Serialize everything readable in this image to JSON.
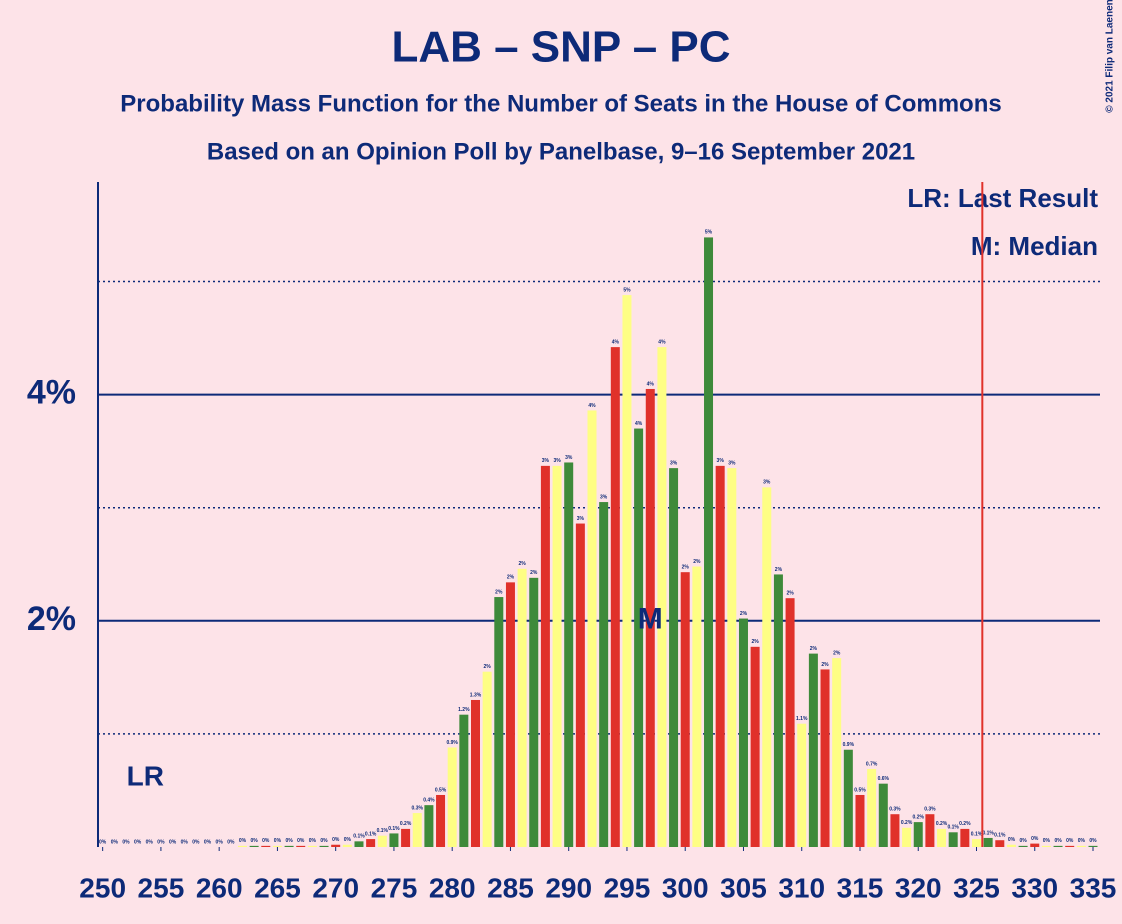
{
  "chart_data": {
    "type": "bar",
    "title": "LAB – SNP – PC",
    "subtitle": "Probability Mass Function for the Number of Seats in the House of Commons",
    "subtitle2": "Based on an Opinion Poll by Panelbase, 9–16 September 2021",
    "copyright": "© 2021 Filip van Laenen",
    "legend_lr": "LR: Last Result",
    "legend_median": "M: Median",
    "lr_label": "LR",
    "median_label": "M",
    "last_result": 254,
    "median": 297,
    "majority": 326,
    "x": [
      250,
      251,
      252,
      253,
      254,
      255,
      256,
      257,
      258,
      259,
      260,
      261,
      262,
      263,
      264,
      265,
      266,
      267,
      268,
      269,
      270,
      271,
      272,
      273,
      274,
      275,
      276,
      277,
      278,
      279,
      280,
      281,
      282,
      283,
      284,
      285,
      286,
      287,
      288,
      289,
      290,
      291,
      292,
      293,
      294,
      295,
      296,
      297,
      298,
      299,
      300,
      301,
      302,
      303,
      304,
      305,
      306,
      307,
      308,
      309,
      310,
      311,
      312,
      313,
      314,
      315,
      316,
      317,
      318,
      319,
      320,
      321,
      322,
      323,
      324,
      325,
      326,
      327,
      328,
      329,
      330,
      331,
      332,
      333,
      334,
      335
    ],
    "values": [
      0,
      0,
      0,
      0,
      0,
      0,
      0,
      0,
      0,
      0,
      0,
      0,
      0.01,
      0.01,
      0.01,
      0.01,
      0.01,
      0.01,
      0.01,
      0.01,
      0.02,
      0.02,
      0.05,
      0.07,
      0.1,
      0.12,
      0.16,
      0.3,
      0.37,
      0.46,
      0.88,
      1.17,
      1.3,
      1.55,
      2.21,
      2.34,
      2.46,
      2.38,
      3.37,
      3.37,
      3.4,
      2.86,
      3.86,
      3.05,
      4.42,
      4.88,
      3.7,
      4.05,
      4.42,
      3.35,
      2.43,
      2.48,
      5.39,
      3.37,
      3.35,
      2.02,
      1.77,
      3.18,
      2.41,
      2.2,
      1.09,
      1.71,
      1.57,
      1.67,
      0.86,
      0.46,
      0.69,
      0.56,
      0.29,
      0.17,
      0.22,
      0.29,
      0.16,
      0.13,
      0.16,
      0.07,
      0.08,
      0.06,
      0.02,
      0.01,
      0.03,
      0.01,
      0.01,
      0.01,
      0.01,
      0.01
    ],
    "value_labels": [
      "0%",
      "0%",
      "0%",
      "0%",
      "0%",
      "0%",
      "0%",
      "0%",
      "0%",
      "0%",
      "0%",
      "0%",
      "0%",
      "0%",
      "0%",
      "0%",
      "0%",
      "0%",
      "0%",
      "0%",
      "0%",
      "0%",
      "0.1%",
      "0.1%",
      "0.1%",
      "0.1%",
      "0.2%",
      "0.3%",
      "0.4%",
      "0.5%",
      "0.9%",
      "1.2%",
      "1.3%",
      "2%",
      "2%",
      "2%",
      "2%",
      "2%",
      "3%",
      "3%",
      "3%",
      "3%",
      "4%",
      "3%",
      "4%",
      "5%",
      "4%",
      "4%",
      "4%",
      "3%",
      "2%",
      "2%",
      "5%",
      "3%",
      "3%",
      "2%",
      "2%",
      "3%",
      "2%",
      "2%",
      "1.1%",
      "2%",
      "2%",
      "2%",
      "0.9%",
      "0.5%",
      "0.7%",
      "0.6%",
      "0.3%",
      "0.2%",
      "0.2%",
      "0.3%",
      "0.2%",
      "0.1%",
      "0.2%",
      "0.1%",
      "0.1%",
      "0.1%",
      "0%",
      "0%",
      "0%",
      "0%",
      "0%",
      "0%",
      "0%",
      "0%"
    ],
    "color_cycle": [
      "#fefe84",
      "#3e8a3a",
      "#e0312a"
    ],
    "xlim": [
      249.6,
      335.6
    ],
    "xticks": [
      250,
      255,
      260,
      265,
      270,
      275,
      280,
      285,
      290,
      295,
      300,
      305,
      310,
      315,
      320,
      325,
      330,
      335
    ],
    "ylim": [
      0,
      5.88
    ],
    "yticks": [
      {
        "value": 2,
        "label": "2%"
      },
      {
        "value": 4,
        "label": "4%"
      }
    ],
    "minor_grid": [
      1,
      3,
      5
    ]
  }
}
